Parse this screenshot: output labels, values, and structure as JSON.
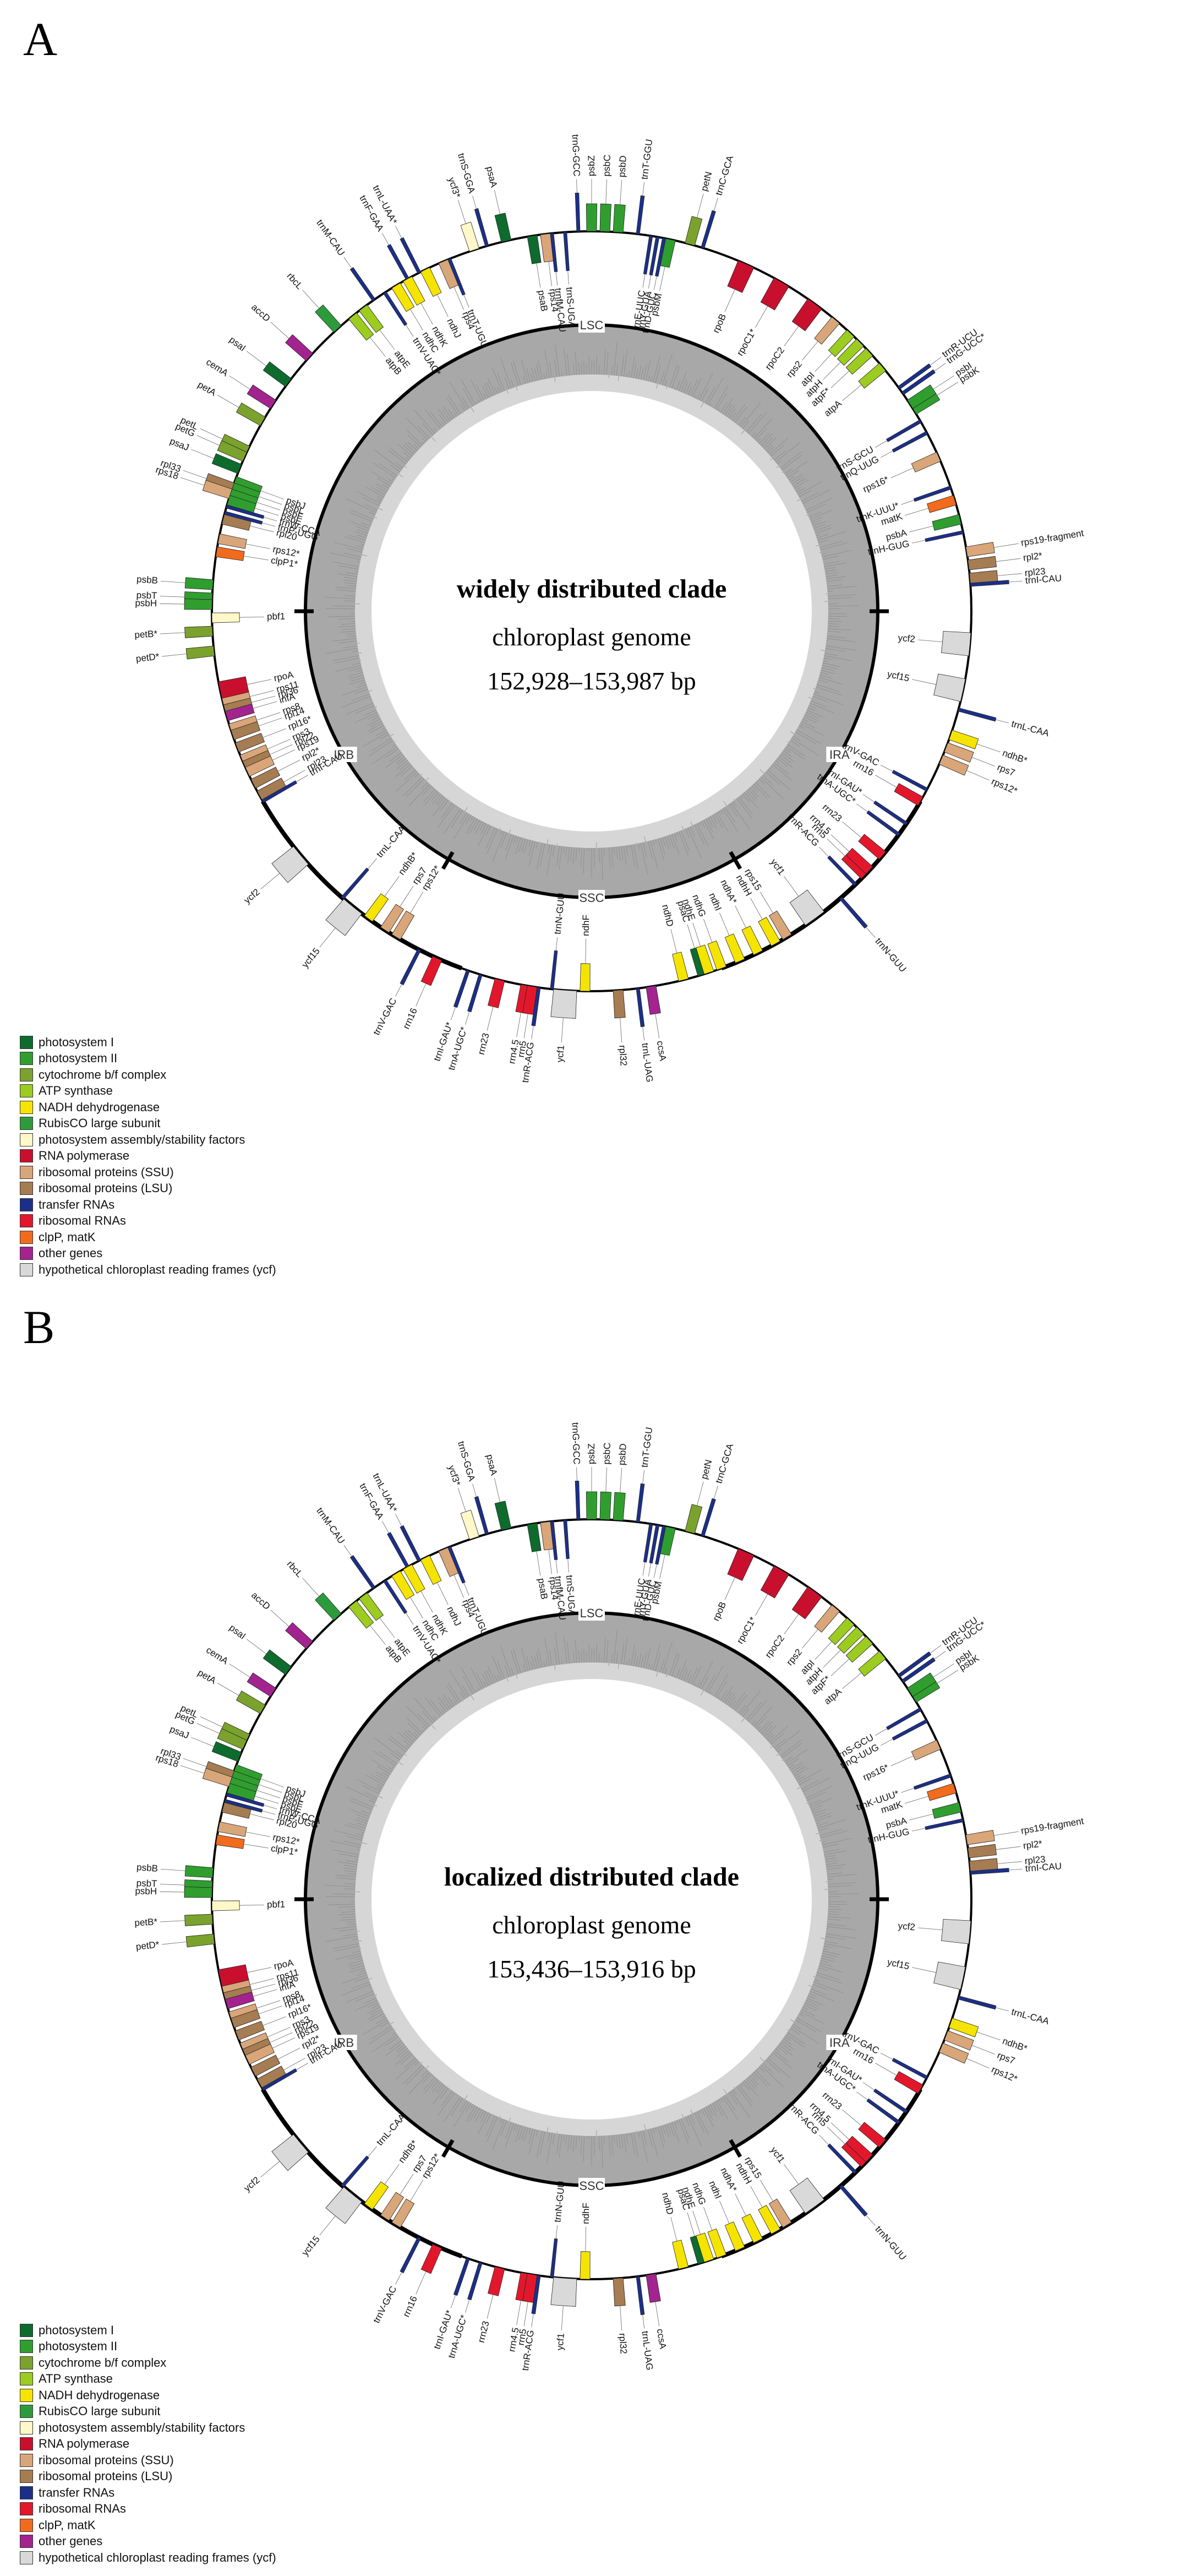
{
  "figure": {
    "panels": [
      {
        "letter": "A",
        "title": "widely distributed clade",
        "subtitle": "chloroplast genome",
        "size_range": "152,928–153,987 bp",
        "region_labels": [
          "LSC",
          "IRB",
          "SSC",
          "IRA"
        ]
      },
      {
        "letter": "B",
        "title": "localized distributed clade",
        "subtitle": "chloroplast genome",
        "size_range": "153,436–153,916 bp",
        "region_labels": [
          "LSC",
          "IRB",
          "SSC",
          "IRA"
        ]
      }
    ]
  },
  "legend": [
    {
      "label": "photosystem I",
      "color": "#0d6b2e"
    },
    {
      "label": "photosystem II",
      "color": "#2f9e2f"
    },
    {
      "label": "cytochrome b/f complex",
      "color": "#7aa22c"
    },
    {
      "label": "ATP synthase",
      "color": "#9bcc1f"
    },
    {
      "label": "NADH dehydrogenase",
      "color": "#f5e400"
    },
    {
      "label": "RubisCO large subunit",
      "color": "#2d9b3c"
    },
    {
      "label": "photosystem assembly/stability factors",
      "color": "#fff8c8"
    },
    {
      "label": "RNA polymerase",
      "color": "#c8102e"
    },
    {
      "label": "ribosomal proteins (SSU)",
      "color": "#d9a679"
    },
    {
      "label": "ribosomal proteins (LSU)",
      "color": "#a67c52"
    },
    {
      "label": "transfer RNAs",
      "color": "#1b2f8a"
    },
    {
      "label": "ribosomal RNAs",
      "color": "#e3172c"
    },
    {
      "label": "clpP, matK",
      "color": "#f26b1d"
    },
    {
      "label": "other genes",
      "color": "#a3238f"
    },
    {
      "label": "hypothetical chloroplast reading frames (ycf)",
      "color": "#d9d9d9"
    }
  ],
  "genes": [
    {
      "name": "trnS-GGA",
      "angle": 344,
      "cat": 10,
      "side": "out"
    },
    {
      "name": "trnL-UAA*",
      "angle": 333,
      "cat": 10,
      "side": "out"
    },
    {
      "name": "trnF-GAA",
      "angle": 331,
      "cat": 10,
      "side": "out"
    },
    {
      "name": "trnM-CAU",
      "angle": 325,
      "cat": 10,
      "side": "out"
    },
    {
      "name": "rbcL",
      "angle": 318,
      "cat": 5,
      "side": "out"
    },
    {
      "name": "accD",
      "angle": 312,
      "cat": 13,
      "side": "out"
    },
    {
      "name": "psaI",
      "angle": 307,
      "cat": 0,
      "side": "out"
    },
    {
      "name": "cemA",
      "angle": 303,
      "cat": 13,
      "side": "out"
    },
    {
      "name": "petA",
      "angle": 300,
      "cat": 2,
      "side": "out"
    },
    {
      "name": "petL",
      "angle": 295,
      "cat": 2,
      "side": "out"
    },
    {
      "name": "petG",
      "angle": 294,
      "cat": 2,
      "side": "out"
    },
    {
      "name": "psaJ",
      "angle": 292,
      "cat": 0,
      "side": "out"
    },
    {
      "name": "rpl33",
      "angle": 289,
      "cat": 9,
      "side": "out"
    },
    {
      "name": "rps18",
      "angle": 288,
      "cat": 8,
      "side": "out"
    },
    {
      "name": "rpl20",
      "angle": 284,
      "cat": 9,
      "side": "in"
    },
    {
      "name": "rps12*",
      "angle": 281,
      "cat": 8,
      "side": "in"
    },
    {
      "name": "clpP1*",
      "angle": 279,
      "cat": 12,
      "side": "in"
    },
    {
      "name": "psbB",
      "angle": 274,
      "cat": 1,
      "side": "out"
    },
    {
      "name": "psbT",
      "angle": 272,
      "cat": 1,
      "side": "out"
    },
    {
      "name": "psbH",
      "angle": 271,
      "cat": 1,
      "side": "out"
    },
    {
      "name": "pbf1",
      "angle": 269,
      "cat": 6,
      "side": "in"
    },
    {
      "name": "petB*",
      "angle": 267,
      "cat": 2,
      "side": "out"
    },
    {
      "name": "petD*",
      "angle": 264,
      "cat": 2,
      "side": "out"
    },
    {
      "name": "rpoA",
      "angle": 258,
      "cat": 7,
      "side": "in"
    },
    {
      "name": "rps11",
      "angle": 256,
      "cat": 8,
      "side": "in"
    },
    {
      "name": "rpl36",
      "angle": 255,
      "cat": 9,
      "side": "in"
    },
    {
      "name": "infA",
      "angle": 254,
      "cat": 13,
      "side": "in"
    },
    {
      "name": "rps8",
      "angle": 252,
      "cat": 8,
      "side": "in"
    },
    {
      "name": "rpl14",
      "angle": 251,
      "cat": 9,
      "side": "in"
    },
    {
      "name": "rpl16*",
      "angle": 249,
      "cat": 9,
      "side": "in"
    },
    {
      "name": "rps3",
      "angle": 247,
      "cat": 8,
      "side": "in"
    },
    {
      "name": "rpl22",
      "angle": 246,
      "cat": 9,
      "side": "in"
    },
    {
      "name": "rps19",
      "angle": 245,
      "cat": 8,
      "side": "in"
    },
    {
      "name": "rpl2*",
      "angle": 243,
      "cat": 9,
      "side": "in"
    },
    {
      "name": "rpl23",
      "angle": 241,
      "cat": 9,
      "side": "in"
    },
    {
      "name": "trnI-CAU",
      "angle": 240,
      "cat": 10,
      "side": "in"
    },
    {
      "name": "ycf2",
      "angle": 230,
      "cat": 14,
      "side": "out"
    },
    {
      "name": "trnL-CAA",
      "angle": 221,
      "cat": 10,
      "side": "in"
    },
    {
      "name": "ycf15",
      "angle": 219,
      "cat": 14,
      "side": "out"
    },
    {
      "name": "ndhB*",
      "angle": 216,
      "cat": 4,
      "side": "in"
    },
    {
      "name": "rps7",
      "angle": 213,
      "cat": 8,
      "side": "in"
    },
    {
      "name": "rps12*",
      "angle": 211,
      "cat": 8,
      "side": "in"
    },
    {
      "name": "trnV-GAC",
      "angle": 207,
      "cat": 10,
      "side": "out"
    },
    {
      "name": "rrn16",
      "angle": 204,
      "cat": 11,
      "side": "out"
    },
    {
      "name": "trnI-GAU*",
      "angle": 199,
      "cat": 10,
      "side": "out"
    },
    {
      "name": "trnA-UGC*",
      "angle": 197,
      "cat": 10,
      "side": "out"
    },
    {
      "name": "rrn23",
      "angle": 194,
      "cat": 11,
      "side": "out"
    },
    {
      "name": "rrn4.5",
      "angle": 190,
      "cat": 11,
      "side": "out"
    },
    {
      "name": "rrn5",
      "angle": 189,
      "cat": 11,
      "side": "out"
    },
    {
      "name": "trnR-ACG",
      "angle": 188,
      "cat": 10,
      "side": "out"
    },
    {
      "name": "trnN-GUU",
      "angle": 186,
      "cat": 10,
      "side": "in"
    },
    {
      "name": "ycf1",
      "angle": 184,
      "cat": 14,
      "side": "out"
    },
    {
      "name": "ndhF",
      "angle": 181,
      "cat": 4,
      "side": "in"
    },
    {
      "name": "rpl32",
      "angle": 176,
      "cat": 9,
      "side": "out"
    },
    {
      "name": "trnL-UAG",
      "angle": 173,
      "cat": 10,
      "side": "out"
    },
    {
      "name": "ccsA",
      "angle": 171,
      "cat": 13,
      "side": "out"
    },
    {
      "name": "ndhD",
      "angle": 166,
      "cat": 4,
      "side": "in"
    },
    {
      "name": "psaC",
      "angle": 163,
      "cat": 0,
      "side": "in"
    },
    {
      "name": "ndhE",
      "angle": 162,
      "cat": 4,
      "side": "in"
    },
    {
      "name": "ndhG",
      "angle": 160,
      "cat": 4,
      "side": "in"
    },
    {
      "name": "ndhI",
      "angle": 157,
      "cat": 4,
      "side": "in"
    },
    {
      "name": "ndhA*",
      "angle": 154,
      "cat": 4,
      "side": "in"
    },
    {
      "name": "ndhH",
      "angle": 151,
      "cat": 4,
      "side": "in"
    },
    {
      "name": "rps15",
      "angle": 149,
      "cat": 8,
      "side": "in"
    },
    {
      "name": "ycf1",
      "angle": 144,
      "cat": 14,
      "side": "in"
    },
    {
      "name": "trnN-GUU",
      "angle": 139,
      "cat": 10,
      "side": "out"
    },
    {
      "name": "trnR-ACG",
      "angle": 136,
      "cat": 10,
      "side": "in"
    },
    {
      "name": "rrn5",
      "angle": 134,
      "cat": 11,
      "side": "in"
    },
    {
      "name": "rrn4.5",
      "angle": 133,
      "cat": 11,
      "side": "in"
    },
    {
      "name": "rrn23",
      "angle": 130,
      "cat": 11,
      "side": "in"
    },
    {
      "name": "trnA-UGC*",
      "angle": 126,
      "cat": 10,
      "side": "in"
    },
    {
      "name": "trnI-GAU*",
      "angle": 124,
      "cat": 10,
      "side": "in"
    },
    {
      "name": "rrn16",
      "angle": 120,
      "cat": 11,
      "side": "in"
    },
    {
      "name": "trnV-GAC",
      "angle": 118,
      "cat": 10,
      "side": "in"
    },
    {
      "name": "rps12*",
      "angle": 113,
      "cat": 8,
      "side": "out"
    },
    {
      "name": "rps7",
      "angle": 111,
      "cat": 8,
      "side": "out"
    },
    {
      "name": "ndhB*",
      "angle": 109,
      "cat": 4,
      "side": "out"
    },
    {
      "name": "trnL-CAA",
      "angle": 105,
      "cat": 10,
      "side": "out"
    },
    {
      "name": "ycf15",
      "angle": 102,
      "cat": 14,
      "side": "in"
    },
    {
      "name": "ycf2",
      "angle": 95,
      "cat": 14,
      "side": "in"
    },
    {
      "name": "trnI-CAU",
      "angle": 86,
      "cat": 10,
      "side": "out"
    },
    {
      "name": "rpl23",
      "angle": 85,
      "cat": 9,
      "side": "out"
    },
    {
      "name": "rpl2*",
      "angle": 83,
      "cat": 9,
      "side": "out"
    },
    {
      "name": "rps19-fragment",
      "angle": 81,
      "cat": 8,
      "side": "out"
    },
    {
      "name": "trnH-GUG",
      "angle": 78,
      "cat": 10,
      "side": "in"
    },
    {
      "name": "psbA",
      "angle": 76,
      "cat": 1,
      "side": "in"
    },
    {
      "name": "matK",
      "angle": 73,
      "cat": 12,
      "side": "in"
    },
    {
      "name": "trnK-UUU*",
      "angle": 71,
      "cat": 10,
      "side": "in"
    },
    {
      "name": "rps16*",
      "angle": 66,
      "cat": 8,
      "side": "in"
    },
    {
      "name": "trnQ-UUG",
      "angle": 62,
      "cat": 10,
      "side": "in"
    },
    {
      "name": "trnS-GCU",
      "angle": 60,
      "cat": 10,
      "side": "in"
    },
    {
      "name": "psbK",
      "angle": 58,
      "cat": 1,
      "side": "out"
    },
    {
      "name": "psbI",
      "angle": 57,
      "cat": 1,
      "side": "out"
    },
    {
      "name": "trnG-UCC*",
      "angle": 55,
      "cat": 10,
      "side": "out"
    },
    {
      "name": "trnR-UCU",
      "angle": 54,
      "cat": 10,
      "side": "out"
    },
    {
      "name": "atpA",
      "angle": 50,
      "cat": 3,
      "side": "in"
    },
    {
      "name": "atpF*",
      "angle": 47,
      "cat": 3,
      "side": "in"
    },
    {
      "name": "atpH",
      "angle": 45,
      "cat": 3,
      "side": "in"
    },
    {
      "name": "atpI",
      "angle": 43,
      "cat": 3,
      "side": "in"
    },
    {
      "name": "rps2",
      "angle": 40,
      "cat": 8,
      "side": "in"
    },
    {
      "name": "rpoC2",
      "angle": 36,
      "cat": 7,
      "side": "in"
    },
    {
      "name": "rpoC1*",
      "angle": 30,
      "cat": 7,
      "side": "in"
    },
    {
      "name": "rpoB",
      "angle": 24,
      "cat": 7,
      "side": "in"
    },
    {
      "name": "trnC-GCA",
      "angle": 17,
      "cat": 10,
      "side": "out"
    },
    {
      "name": "petN",
      "angle": 15,
      "cat": 2,
      "side": "out"
    },
    {
      "name": "psbM",
      "angle": 12,
      "cat": 1,
      "side": "in"
    },
    {
      "name": "trnD-GUC",
      "angle": 11,
      "cat": 10,
      "side": "in"
    },
    {
      "name": "trnY-GUA",
      "angle": 10,
      "cat": 10,
      "side": "in"
    },
    {
      "name": "trnE-UUC",
      "angle": 9,
      "cat": 10,
      "side": "in"
    },
    {
      "name": "trnT-GGU",
      "angle": 7,
      "cat": 10,
      "side": "out"
    },
    {
      "name": "psbD",
      "angle": 4,
      "cat": 1,
      "side": "out"
    },
    {
      "name": "psbC",
      "angle": 2,
      "cat": 1,
      "side": "out"
    },
    {
      "name": "psbZ",
      "angle": 0,
      "cat": 1,
      "side": "out"
    },
    {
      "name": "trnG-GCC",
      "angle": 358,
      "cat": 10,
      "side": "out"
    },
    {
      "name": "trnS-UGA",
      "angle": 356,
      "cat": 10,
      "side": "in"
    },
    {
      "name": "trnfM-CAU",
      "angle": 354,
      "cat": 10,
      "side": "in"
    },
    {
      "name": "rps14",
      "angle": 353,
      "cat": 8,
      "side": "in"
    },
    {
      "name": "psaB",
      "angle": 351,
      "cat": 0,
      "side": "in"
    },
    {
      "name": "psaA",
      "angle": 347,
      "cat": 0,
      "side": "out"
    },
    {
      "name": "ycf3*",
      "angle": 342,
      "cat": 6,
      "side": "out"
    },
    {
      "name": "trnT-UGU",
      "angle": 338,
      "cat": 10,
      "side": "in"
    },
    {
      "name": "rps4",
      "angle": 337,
      "cat": 8,
      "side": "in"
    },
    {
      "name": "ndhJ",
      "angle": 334,
      "cat": 4,
      "side": "in"
    },
    {
      "name": "ndhK",
      "angle": 331,
      "cat": 4,
      "side": "in"
    },
    {
      "name": "ndhC",
      "angle": 329,
      "cat": 4,
      "side": "in"
    },
    {
      "name": "trnV-UAC*",
      "angle": 327,
      "cat": 10,
      "side": "in"
    },
    {
      "name": "atpE",
      "angle": 323,
      "cat": 3,
      "side": "in"
    },
    {
      "name": "atpB",
      "angle": 321,
      "cat": 3,
      "side": "in"
    },
    {
      "name": "psbJ",
      "angle": 290,
      "cat": 1,
      "side": "in"
    },
    {
      "name": "psbL",
      "angle": 289,
      "cat": 1,
      "side": "in"
    },
    {
      "name": "psbF",
      "angle": 288,
      "cat": 1,
      "side": "in"
    },
    {
      "name": "psbE",
      "angle": 287,
      "cat": 1,
      "side": "in"
    },
    {
      "name": "trnW-CCA",
      "angle": 286,
      "cat": 10,
      "side": "in"
    },
    {
      "name": "trnP-UGG",
      "angle": 285,
      "cat": 10,
      "side": "in"
    }
  ]
}
